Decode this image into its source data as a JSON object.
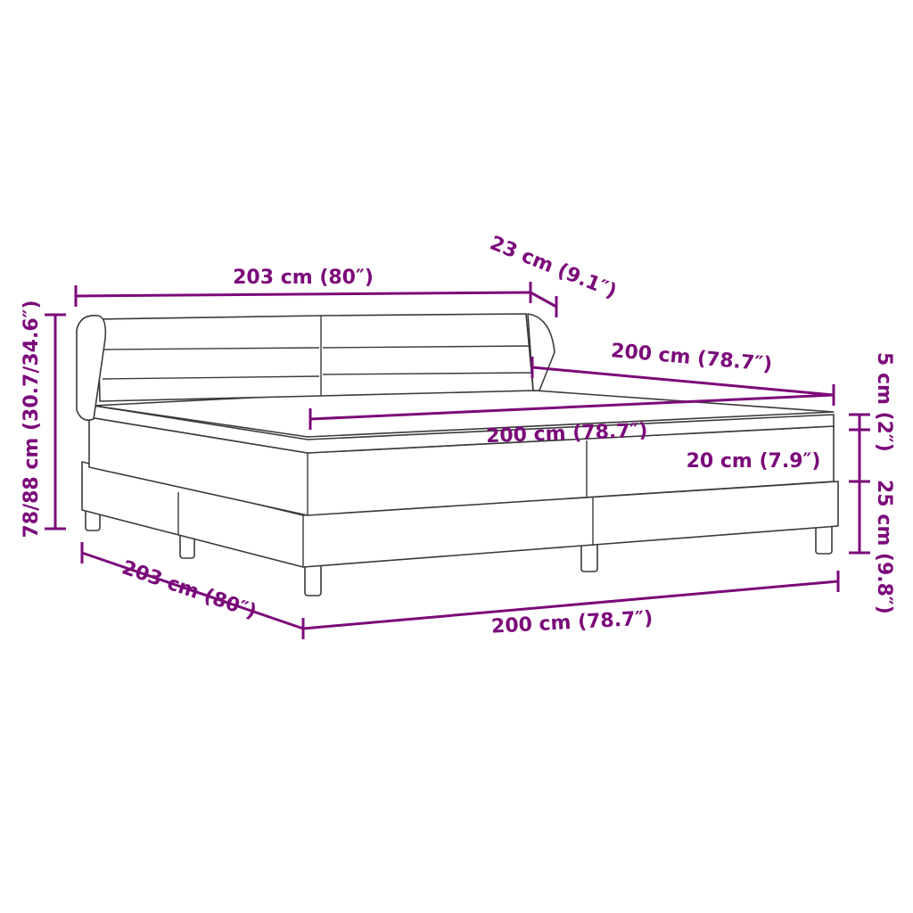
{
  "diagram": {
    "accent_color": "#7b0a7a",
    "labels": {
      "headboard_width": "203 cm (80″)",
      "headboard_depth": "23 cm (9.1″)",
      "mattress_length": "200 cm (78.7″)",
      "mattress_width": "200 cm (78.7″)",
      "topper_height": "5 cm (2″)",
      "mattress_height": "20 cm (7.9″)",
      "base_height": "25 cm (9.8″)",
      "total_height": "78/88 cm (30.7/34.6″)",
      "total_length": "203 cm (80″)",
      "base_width": "200 cm (78.7″)"
    }
  }
}
